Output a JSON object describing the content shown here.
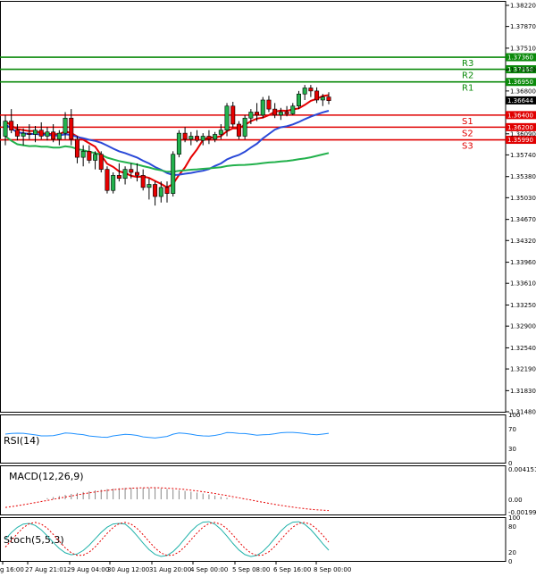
{
  "chart_data": {
    "type": "candlestick",
    "y_ticks": [
      "1.38220",
      "1.37870",
      "1.37510",
      "1.37150",
      "1.36800",
      "1.36090",
      "1.35740",
      "1.35380",
      "1.35030",
      "1.34670",
      "1.34320",
      "1.33960",
      "1.33610",
      "1.33250",
      "1.32900",
      "1.32540",
      "1.32190",
      "1.31830",
      "1.31480"
    ],
    "ylim": [
      1.3148,
      1.3822
    ],
    "x_labels": [
      "g 16:00",
      "27 Aug 21:01",
      "29 Aug 04:00",
      "30 Aug 12:00",
      "31 Aug 20:00",
      "4 Sep 00:00",
      "5 Sep 08:00",
      "6 Sep 16:00",
      "8 Sep 00:00"
    ],
    "levels": [
      {
        "name": "R3",
        "value": 1.3736,
        "label": "1.37360",
        "color": "#0a8a0a"
      },
      {
        "name": "R2",
        "value": 1.3716,
        "label": "1.37160",
        "color": "#0a8a0a"
      },
      {
        "name": "R1",
        "value": 1.3695,
        "label": "1.36950",
        "color": "#0a8a0a"
      },
      {
        "name": "S1",
        "value": 1.364,
        "label": "1.36400",
        "color": "#e00000"
      },
      {
        "name": "S2",
        "value": 1.362,
        "label": "1.36200",
        "color": "#e00000"
      },
      {
        "name": "S3",
        "value": 1.3599,
        "label": "1.35990",
        "color": "#e00000"
      }
    ],
    "current_price": "1.36644",
    "candles": [
      [
        1.3605,
        1.364,
        1.359,
        1.363
      ],
      [
        1.363,
        1.365,
        1.361,
        1.3615
      ],
      [
        1.3615,
        1.3625,
        1.3598,
        1.3605
      ],
      [
        1.3605,
        1.3618,
        1.359,
        1.361
      ],
      [
        1.361,
        1.3625,
        1.36,
        1.3608
      ],
      [
        1.3608,
        1.3622,
        1.3595,
        1.3615
      ],
      [
        1.3615,
        1.3628,
        1.36,
        1.3605
      ],
      [
        1.3605,
        1.362,
        1.3598,
        1.3612
      ],
      [
        1.3612,
        1.3625,
        1.3595,
        1.36
      ],
      [
        1.36,
        1.3615,
        1.359,
        1.361
      ],
      [
        1.361,
        1.3645,
        1.36,
        1.3635
      ],
      [
        1.3635,
        1.365,
        1.359,
        1.36
      ],
      [
        1.36,
        1.3605,
        1.356,
        1.357
      ],
      [
        1.357,
        1.359,
        1.3555,
        1.358
      ],
      [
        1.358,
        1.359,
        1.356,
        1.3565
      ],
      [
        1.3565,
        1.358,
        1.355,
        1.3575
      ],
      [
        1.3575,
        1.358,
        1.3545,
        1.355
      ],
      [
        1.355,
        1.3555,
        1.351,
        1.3515
      ],
      [
        1.3515,
        1.3545,
        1.351,
        1.354
      ],
      [
        1.354,
        1.356,
        1.353,
        1.3535
      ],
      [
        1.3535,
        1.3555,
        1.3525,
        1.355
      ],
      [
        1.355,
        1.356,
        1.3535,
        1.3545
      ],
      [
        1.3545,
        1.356,
        1.353,
        1.354
      ],
      [
        1.354,
        1.355,
        1.3515,
        1.352
      ],
      [
        1.352,
        1.3535,
        1.35,
        1.3525
      ],
      [
        1.3525,
        1.353,
        1.349,
        1.3505
      ],
      [
        1.3505,
        1.353,
        1.3495,
        1.352
      ],
      [
        1.352,
        1.353,
        1.3495,
        1.351
      ],
      [
        1.351,
        1.358,
        1.3505,
        1.3575
      ],
      [
        1.3575,
        1.3615,
        1.357,
        1.361
      ],
      [
        1.361,
        1.362,
        1.3595,
        1.36
      ],
      [
        1.36,
        1.3612,
        1.359,
        1.3605
      ],
      [
        1.3605,
        1.3615,
        1.3595,
        1.3598
      ],
      [
        1.3598,
        1.361,
        1.359,
        1.3605
      ],
      [
        1.3605,
        1.3615,
        1.3592,
        1.36
      ],
      [
        1.36,
        1.3612,
        1.3595,
        1.3608
      ],
      [
        1.3608,
        1.3625,
        1.36,
        1.3615
      ],
      [
        1.3615,
        1.366,
        1.3605,
        1.3655
      ],
      [
        1.3655,
        1.3662,
        1.362,
        1.3625
      ],
      [
        1.3625,
        1.363,
        1.36,
        1.3605
      ],
      [
        1.3605,
        1.364,
        1.36,
        1.3635
      ],
      [
        1.3635,
        1.365,
        1.3625,
        1.3645
      ],
      [
        1.3645,
        1.366,
        1.363,
        1.364
      ],
      [
        1.364,
        1.367,
        1.3635,
        1.3665
      ],
      [
        1.3665,
        1.3672,
        1.3645,
        1.365
      ],
      [
        1.365,
        1.366,
        1.3635,
        1.364
      ],
      [
        1.364,
        1.3652,
        1.3632,
        1.3645
      ],
      [
        1.3645,
        1.3655,
        1.3638,
        1.3642
      ],
      [
        1.3642,
        1.366,
        1.364,
        1.3655
      ],
      [
        1.3655,
        1.368,
        1.365,
        1.3675
      ],
      [
        1.3675,
        1.369,
        1.3665,
        1.3685
      ],
      [
        1.3685,
        1.369,
        1.367,
        1.368
      ],
      [
        1.368,
        1.3686,
        1.366,
        1.3665
      ],
      [
        1.3665,
        1.3675,
        1.3655,
        1.367
      ],
      [
        1.367,
        1.3678,
        1.3658,
        1.3664
      ]
    ],
    "indicators": [
      {
        "name": "RSI(14)",
        "ticks": [
          "100",
          "70",
          "30",
          "0"
        ]
      },
      {
        "name": "MACD(12,26,9)",
        "ticks": [
          "0.004151",
          "0.00",
          "-0.001995"
        ]
      },
      {
        "name": "Stoch(5,5,3)",
        "ticks": [
          "100",
          "80",
          "20",
          "0"
        ]
      }
    ],
    "colors": {
      "ma_fast": "#e60000",
      "ma_mid": "#2a49d8",
      "ma_slow": "#22b14c",
      "bull": "#22b14c",
      "bear": "#e60000",
      "rsi": "#1e90ff",
      "stoch_main": "#20b2aa",
      "stoch_signal": "#e60000"
    }
  }
}
